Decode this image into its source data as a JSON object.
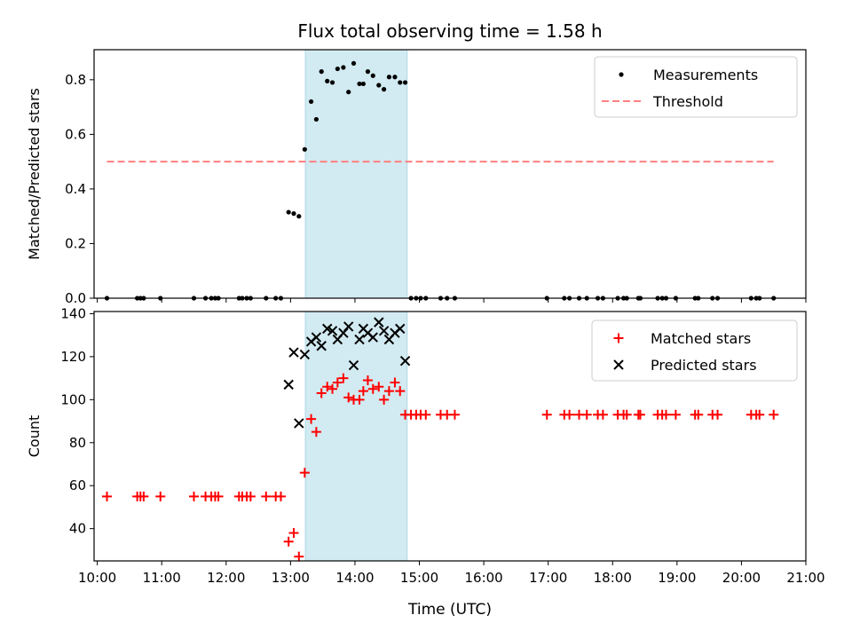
{
  "chart_data": {
    "title": "Flux total observing time = 1.58 h",
    "xlabel": "Time (UTC)",
    "xlim": [
      9.95,
      21.0
    ],
    "xticks": [
      10,
      11,
      12,
      13,
      14,
      15,
      16,
      17,
      18,
      19,
      20,
      21
    ],
    "xtick_labels": [
      "10:00",
      "11:00",
      "12:00",
      "13:00",
      "14:00",
      "15:00",
      "16:00",
      "17:00",
      "18:00",
      "19:00",
      "20:00",
      "21:00"
    ],
    "shaded_region": {
      "x_start": 13.23,
      "x_end": 14.81,
      "color": "#add8e6"
    },
    "panels": [
      {
        "type": "scatter",
        "ylabel": "Matched/Predicted stars",
        "ylim": [
          0,
          0.91
        ],
        "yticks": [
          0.0,
          0.2,
          0.4,
          0.6,
          0.8
        ],
        "ytick_labels": [
          "0.0",
          "0.2",
          "0.4",
          "0.6",
          "0.8"
        ],
        "legend": {
          "position": "upper right",
          "entries": [
            {
              "label": "Measurements",
              "marker": "dot",
              "color": "#000000"
            },
            {
              "label": "Threshold",
              "marker": "dashed-line",
              "color": "#ff7f7f"
            }
          ]
        },
        "series": [
          {
            "name": "Measurements",
            "marker": "dot",
            "color": "#000000",
            "x": [
              10.15,
              10.62,
              10.67,
              10.72,
              10.98,
              11.5,
              11.68,
              11.77,
              11.83,
              11.88,
              12.2,
              12.25,
              12.32,
              12.38,
              12.62,
              12.77,
              12.85,
              12.97,
              13.05,
              13.13,
              13.22,
              13.32,
              13.4,
              13.48,
              13.57,
              13.65,
              13.73,
              13.82,
              13.9,
              13.98,
              14.07,
              14.13,
              14.2,
              14.28,
              14.37,
              14.45,
              14.53,
              14.62,
              14.7,
              14.78,
              14.87,
              14.95,
              15.02,
              15.1,
              15.33,
              15.43,
              15.55,
              16.98,
              17.25,
              17.33,
              17.48,
              17.6,
              17.77,
              17.85,
              18.08,
              18.17,
              18.22,
              18.4,
              18.43,
              18.7,
              18.77,
              18.83,
              18.98,
              19.28,
              19.33,
              19.55,
              19.63,
              20.15,
              20.23,
              20.28,
              20.5
            ],
            "y": [
              0,
              0,
              0,
              0,
              0,
              0,
              0,
              0,
              0,
              0,
              0,
              0,
              0,
              0,
              0,
              0,
              0,
              0.315,
              0.31,
              0.3,
              0.545,
              0.72,
              0.655,
              0.83,
              0.795,
              0.79,
              0.84,
              0.845,
              0.755,
              0.86,
              0.785,
              0.785,
              0.83,
              0.815,
              0.78,
              0.765,
              0.81,
              0.81,
              0.79,
              0.79,
              0,
              0,
              0,
              0,
              0,
              0,
              0,
              0,
              0,
              0,
              0,
              0,
              0,
              0,
              0,
              0,
              0,
              0,
              0,
              0,
              0,
              0,
              0,
              0,
              0,
              0,
              0,
              0,
              0,
              0,
              0
            ]
          },
          {
            "name": "Threshold",
            "type": "line",
            "style": "dashed",
            "color": "#ff7f7f",
            "x": [
              10.15,
              20.5
            ],
            "y": [
              0.5,
              0.5
            ]
          }
        ]
      },
      {
        "type": "scatter",
        "ylabel": "Count",
        "ylim": [
          25,
          141
        ],
        "yticks": [
          40,
          60,
          80,
          100,
          120,
          140
        ],
        "ytick_labels": [
          "40",
          "60",
          "80",
          "100",
          "120",
          "140"
        ],
        "legend": {
          "position": "upper right",
          "entries": [
            {
              "label": "Matched stars",
              "marker": "plus",
              "color": "#ff0000"
            },
            {
              "label": "Predicted stars",
              "marker": "x",
              "color": "#000000"
            }
          ]
        },
        "series": [
          {
            "name": "Matched stars",
            "marker": "plus",
            "color": "#ff0000",
            "x": [
              10.15,
              10.62,
              10.67,
              10.72,
              10.98,
              11.5,
              11.68,
              11.77,
              11.83,
              11.88,
              12.2,
              12.25,
              12.32,
              12.38,
              12.62,
              12.77,
              12.85,
              12.97,
              13.05,
              13.13,
              13.22,
              13.32,
              13.4,
              13.48,
              13.57,
              13.65,
              13.73,
              13.82,
              13.9,
              13.98,
              14.07,
              14.13,
              14.2,
              14.28,
              14.37,
              14.45,
              14.53,
              14.62,
              14.7,
              14.78,
              14.87,
              14.95,
              15.02,
              15.1,
              15.33,
              15.43,
              15.55,
              16.98,
              17.25,
              17.33,
              17.48,
              17.6,
              17.77,
              17.85,
              18.08,
              18.17,
              18.22,
              18.4,
              18.43,
              18.7,
              18.77,
              18.83,
              18.98,
              19.28,
              19.33,
              19.55,
              19.63,
              20.15,
              20.23,
              20.28,
              20.5
            ],
            "y": [
              55,
              55,
              55,
              55,
              55,
              55,
              55,
              55,
              55,
              55,
              55,
              55,
              55,
              55,
              55,
              55,
              55,
              34,
              38,
              27,
              66,
              91,
              85,
              103,
              106,
              105,
              108,
              110,
              101,
              100,
              100,
              104,
              109,
              105,
              106,
              100,
              104,
              108,
              104,
              93,
              93,
              93,
              93,
              93,
              93,
              93,
              93,
              93,
              93,
              93,
              93,
              93,
              93,
              93,
              93,
              93,
              93,
              93,
              93,
              93,
              93,
              93,
              93,
              93,
              93,
              93,
              93,
              93,
              93,
              93,
              93
            ]
          },
          {
            "name": "Predicted stars",
            "marker": "x",
            "color": "#000000",
            "x": [
              12.97,
              13.05,
              13.13,
              13.22,
              13.32,
              13.4,
              13.48,
              13.57,
              13.65,
              13.73,
              13.82,
              13.9,
              13.98,
              14.07,
              14.13,
              14.2,
              14.28,
              14.37,
              14.45,
              14.53,
              14.62,
              14.7,
              14.78
            ],
            "y": [
              107,
              122,
              89,
              121,
              127,
              129,
              125,
              133,
              132,
              128,
              131,
              134,
              116,
              128,
              133,
              131,
              129,
              136,
              132,
              128,
              131,
              133,
              118
            ]
          }
        ]
      }
    ]
  }
}
